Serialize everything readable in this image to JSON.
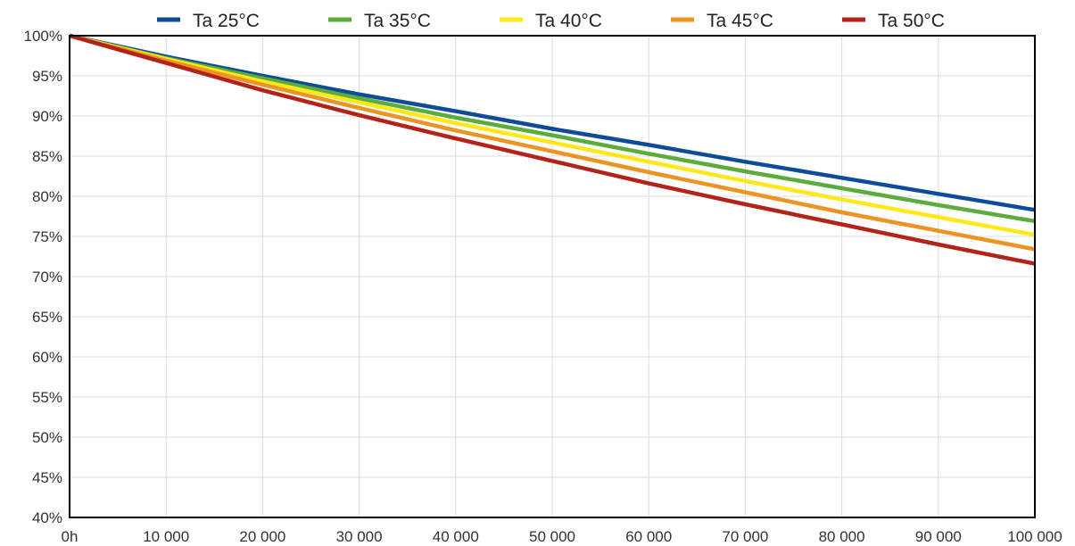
{
  "chart_data": {
    "type": "line",
    "title": "",
    "xlabel": "",
    "ylabel": "",
    "xlim": [
      0,
      100000
    ],
    "ylim": [
      40,
      100
    ],
    "grid": true,
    "legend_position": "top",
    "x_ticks": [
      {
        "value": 0,
        "label": "0h"
      },
      {
        "value": 10000,
        "label": "10 000"
      },
      {
        "value": 20000,
        "label": "20 000"
      },
      {
        "value": 30000,
        "label": "30 000"
      },
      {
        "value": 40000,
        "label": "40 000"
      },
      {
        "value": 50000,
        "label": "50 000"
      },
      {
        "value": 60000,
        "label": "60 000"
      },
      {
        "value": 70000,
        "label": "70 000"
      },
      {
        "value": 80000,
        "label": "80 000"
      },
      {
        "value": 90000,
        "label": "90 000"
      },
      {
        "value": 100000,
        "label": "100 000"
      }
    ],
    "y_ticks": [
      {
        "value": 100,
        "label": "100%"
      },
      {
        "value": 95,
        "label": "95%"
      },
      {
        "value": 90,
        "label": "90%"
      },
      {
        "value": 85,
        "label": "85%"
      },
      {
        "value": 80,
        "label": "80%"
      },
      {
        "value": 75,
        "label": "75%"
      },
      {
        "value": 70,
        "label": "70%"
      },
      {
        "value": 65,
        "label": "65%"
      },
      {
        "value": 60,
        "label": "60%"
      },
      {
        "value": 55,
        "label": "55%"
      },
      {
        "value": 50,
        "label": "50%"
      },
      {
        "value": 45,
        "label": "45%"
      },
      {
        "value": 40,
        "label": "40%"
      }
    ],
    "x": [
      0,
      10000,
      20000,
      30000,
      40000,
      50000,
      60000,
      70000,
      80000,
      90000,
      100000
    ],
    "series": [
      {
        "name": "Ta 25°C",
        "color": "#0f4c97",
        "values": [
          100,
          97.4,
          95.0,
          92.7,
          90.6,
          88.4,
          86.4,
          84.3,
          82.3,
          80.3,
          78.3
        ]
      },
      {
        "name": "Ta 35°C",
        "color": "#5aad3c",
        "values": [
          100,
          97.2,
          94.7,
          92.2,
          89.8,
          87.6,
          85.3,
          83.1,
          81.0,
          78.9,
          76.9
        ]
      },
      {
        "name": "Ta 40°C",
        "color": "#ffe81a",
        "values": [
          100,
          97.1,
          94.3,
          91.7,
          89.1,
          86.7,
          84.3,
          81.9,
          79.6,
          77.4,
          75.2
        ]
      },
      {
        "name": "Ta 45°C",
        "color": "#ec9423",
        "values": [
          100,
          96.9,
          93.9,
          91.0,
          88.2,
          85.6,
          83.0,
          80.5,
          78.0,
          75.7,
          73.4
        ]
      },
      {
        "name": "Ta 50°C",
        "color": "#b3231a",
        "values": [
          100,
          96.6,
          93.2,
          90.1,
          87.2,
          84.4,
          81.6,
          79.0,
          76.5,
          74.0,
          71.6
        ]
      }
    ]
  }
}
